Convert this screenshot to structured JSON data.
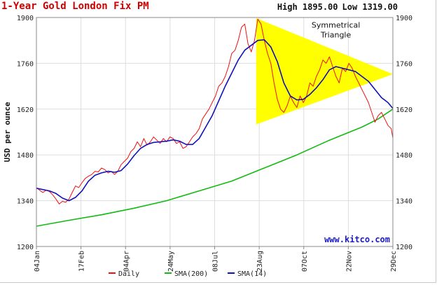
{
  "header": {
    "title": "1-Year Gold London Fix PM",
    "high_label": "High 1895.00",
    "low_label": "Low 1319.00"
  },
  "annotations": {
    "triangle_line1": "Symmetrical",
    "triangle_line2": "Triangle",
    "watermark": "www.kitco.com"
  },
  "colors": {
    "daily": "#ee1111",
    "sma200": "#11bb11",
    "sma14": "#1111bb",
    "triangle": "#ffff00",
    "title": "#d00000",
    "grid": "#dddddd"
  },
  "chart_data": {
    "type": "line",
    "title": "1-Year Gold London Fix PM",
    "ylabel": "USD per ounce",
    "xlabel": "",
    "ylim": [
      1200,
      1900
    ],
    "yticks": [
      1200,
      1340,
      1480,
      1620,
      1760,
      1900
    ],
    "xticks": [
      "04Jan",
      "17Feb",
      "04Apr",
      "24May",
      "08Jul",
      "23Aug",
      "07Oct",
      "22Nov",
      "29Dec"
    ],
    "grid": true,
    "legend_position": "bottom",
    "series": [
      {
        "name": "Daily",
        "color": "#ee1111",
        "points": [
          [
            0,
            1380
          ],
          [
            2,
            1372
          ],
          [
            4,
            1365
          ],
          [
            6,
            1372
          ],
          [
            8,
            1368
          ],
          [
            10,
            1358
          ],
          [
            12,
            1345
          ],
          [
            14,
            1330
          ],
          [
            16,
            1338
          ],
          [
            18,
            1335
          ],
          [
            20,
            1345
          ],
          [
            22,
            1365
          ],
          [
            24,
            1385
          ],
          [
            26,
            1380
          ],
          [
            28,
            1395
          ],
          [
            30,
            1408
          ],
          [
            32,
            1415
          ],
          [
            34,
            1420
          ],
          [
            36,
            1430
          ],
          [
            38,
            1428
          ],
          [
            40,
            1440
          ],
          [
            42,
            1435
          ],
          [
            44,
            1425
          ],
          [
            46,
            1430
          ],
          [
            48,
            1420
          ],
          [
            50,
            1430
          ],
          [
            52,
            1450
          ],
          [
            54,
            1460
          ],
          [
            56,
            1470
          ],
          [
            58,
            1490
          ],
          [
            60,
            1500
          ],
          [
            62,
            1520
          ],
          [
            64,
            1505
          ],
          [
            66,
            1530
          ],
          [
            68,
            1510
          ],
          [
            70,
            1520
          ],
          [
            72,
            1535
          ],
          [
            74,
            1525
          ],
          [
            76,
            1515
          ],
          [
            78,
            1530
          ],
          [
            80,
            1520
          ],
          [
            82,
            1535
          ],
          [
            84,
            1530
          ],
          [
            86,
            1515
          ],
          [
            88,
            1520
          ],
          [
            90,
            1500
          ],
          [
            92,
            1505
          ],
          [
            94,
            1520
          ],
          [
            96,
            1535
          ],
          [
            98,
            1545
          ],
          [
            100,
            1560
          ],
          [
            102,
            1590
          ],
          [
            104,
            1605
          ],
          [
            106,
            1620
          ],
          [
            108,
            1640
          ],
          [
            110,
            1660
          ],
          [
            112,
            1690
          ],
          [
            114,
            1700
          ],
          [
            116,
            1720
          ],
          [
            118,
            1750
          ],
          [
            120,
            1790
          ],
          [
            122,
            1800
          ],
          [
            124,
            1830
          ],
          [
            126,
            1870
          ],
          [
            128,
            1880
          ],
          [
            130,
            1820
          ],
          [
            132,
            1795
          ],
          [
            134,
            1830
          ],
          [
            136,
            1895
          ],
          [
            138,
            1880
          ],
          [
            140,
            1830
          ],
          [
            142,
            1790
          ],
          [
            144,
            1760
          ],
          [
            146,
            1700
          ],
          [
            148,
            1650
          ],
          [
            150,
            1620
          ],
          [
            152,
            1610
          ],
          [
            154,
            1630
          ],
          [
            156,
            1660
          ],
          [
            158,
            1640
          ],
          [
            160,
            1625
          ],
          [
            162,
            1660
          ],
          [
            164,
            1640
          ],
          [
            166,
            1660
          ],
          [
            168,
            1700
          ],
          [
            170,
            1690
          ],
          [
            172,
            1720
          ],
          [
            174,
            1740
          ],
          [
            176,
            1770
          ],
          [
            178,
            1760
          ],
          [
            180,
            1780
          ],
          [
            182,
            1750
          ],
          [
            184,
            1720
          ],
          [
            186,
            1700
          ],
          [
            188,
            1745
          ],
          [
            190,
            1735
          ],
          [
            192,
            1760
          ],
          [
            194,
            1745
          ],
          [
            196,
            1720
          ],
          [
            198,
            1700
          ],
          [
            200,
            1680
          ],
          [
            202,
            1660
          ],
          [
            204,
            1640
          ],
          [
            206,
            1610
          ],
          [
            208,
            1580
          ],
          [
            210,
            1600
          ],
          [
            212,
            1610
          ],
          [
            214,
            1590
          ],
          [
            216,
            1570
          ],
          [
            218,
            1560
          ],
          [
            219,
            1531
          ]
        ]
      },
      {
        "name": "SMA(200)",
        "color": "#11bb11",
        "points": [
          [
            0,
            1262
          ],
          [
            20,
            1280
          ],
          [
            40,
            1297
          ],
          [
            60,
            1317
          ],
          [
            80,
            1340
          ],
          [
            100,
            1370
          ],
          [
            120,
            1400
          ],
          [
            140,
            1440
          ],
          [
            160,
            1480
          ],
          [
            180,
            1525
          ],
          [
            200,
            1565
          ],
          [
            210,
            1590
          ],
          [
            219,
            1620
          ]
        ]
      },
      {
        "name": "SMA(14)",
        "color": "#1111bb",
        "points": [
          [
            0,
            1378
          ],
          [
            8,
            1370
          ],
          [
            12,
            1362
          ],
          [
            16,
            1348
          ],
          [
            20,
            1340
          ],
          [
            24,
            1350
          ],
          [
            28,
            1370
          ],
          [
            32,
            1400
          ],
          [
            36,
            1418
          ],
          [
            40,
            1425
          ],
          [
            44,
            1430
          ],
          [
            48,
            1427
          ],
          [
            52,
            1432
          ],
          [
            56,
            1452
          ],
          [
            60,
            1478
          ],
          [
            64,
            1500
          ],
          [
            68,
            1512
          ],
          [
            72,
            1518
          ],
          [
            76,
            1520
          ],
          [
            80,
            1522
          ],
          [
            84,
            1526
          ],
          [
            88,
            1522
          ],
          [
            92,
            1512
          ],
          [
            96,
            1512
          ],
          [
            100,
            1530
          ],
          [
            104,
            1565
          ],
          [
            108,
            1600
          ],
          [
            112,
            1645
          ],
          [
            116,
            1690
          ],
          [
            120,
            1730
          ],
          [
            124,
            1770
          ],
          [
            128,
            1800
          ],
          [
            132,
            1815
          ],
          [
            136,
            1830
          ],
          [
            140,
            1832
          ],
          [
            144,
            1810
          ],
          [
            148,
            1765
          ],
          [
            152,
            1700
          ],
          [
            156,
            1660
          ],
          [
            160,
            1648
          ],
          [
            164,
            1650
          ],
          [
            168,
            1665
          ],
          [
            172,
            1685
          ],
          [
            176,
            1710
          ],
          [
            180,
            1740
          ],
          [
            184,
            1750
          ],
          [
            188,
            1745
          ],
          [
            192,
            1740
          ],
          [
            196,
            1735
          ],
          [
            200,
            1720
          ],
          [
            204,
            1705
          ],
          [
            208,
            1680
          ],
          [
            212,
            1655
          ],
          [
            216,
            1640
          ],
          [
            219,
            1622
          ]
        ]
      }
    ],
    "legend": [
      "Daily",
      "SMA(200)",
      "SMA(14)"
    ]
  }
}
